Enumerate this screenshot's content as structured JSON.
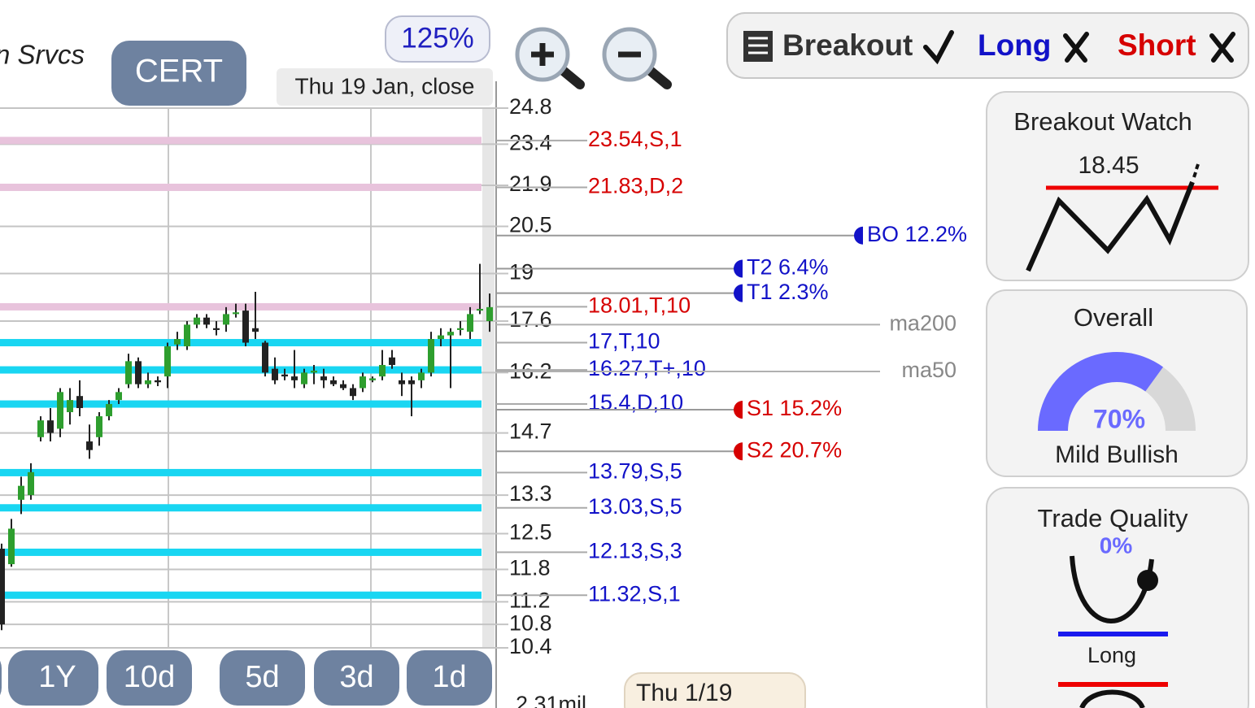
{
  "header": {
    "name": "n Srvcs",
    "ticker": "CERT",
    "zoom": "125%",
    "date": "Thu 19 Jan, close"
  },
  "toolbar": {
    "breakout": "Breakout",
    "long": "Long",
    "short": "Short"
  },
  "chart": {
    "scale": "log",
    "ylim": [
      10.4,
      24.8
    ],
    "yticks": [
      24.8,
      23.4,
      21.9,
      20.5,
      19,
      17.6,
      16.2,
      14.7,
      13.3,
      12.5,
      11.8,
      11.2,
      10.8,
      10.4
    ],
    "grid": true,
    "levels": [
      {
        "value": 23.54,
        "label": "23.54,S,1",
        "text_color": "#d60000",
        "band_color": "#e8c3dc"
      },
      {
        "value": 21.83,
        "label": "21.83,D,2",
        "text_color": "#d60000",
        "band_color": "#e8c3dc"
      },
      {
        "value": 18.01,
        "label": "18.01,T,10",
        "text_color": "#d60000",
        "band_color": "#e8c3dc"
      },
      {
        "value": 17,
        "label": "17,T,10",
        "text_color": "#1212c8",
        "band_color": "#19d6f2"
      },
      {
        "value": 16.27,
        "label": "16.27,T+,10",
        "text_color": "#1212c8",
        "band_color": "#19d6f2"
      },
      {
        "value": 15.4,
        "label": "15.4,D,10",
        "text_color": "#1212c8",
        "band_color": "#19d6f2"
      },
      {
        "value": 13.79,
        "label": "13.79,S,5",
        "text_color": "#1212c8",
        "band_color": "#19d6f2"
      },
      {
        "value": 13.03,
        "label": "13.03,S,5",
        "text_color": "#1212c8",
        "band_color": "#19d6f2"
      },
      {
        "value": 12.13,
        "label": "12.13,S,3",
        "text_color": "#1212c8",
        "band_color": "#19d6f2"
      },
      {
        "value": 11.32,
        "label": "11.32,S,1",
        "text_color": "#1212c8",
        "band_color": "#19d6f2"
      }
    ],
    "targets": [
      {
        "value": 20.2,
        "label": "BO 12.2%",
        "color": "#1212c8"
      },
      {
        "value": 19.15,
        "label": "T2 6.4%",
        "color": "#1212c8"
      },
      {
        "value": 18.41,
        "label": "T1 2.3%",
        "color": "#1212c8"
      },
      {
        "value": 15.26,
        "label": "S1 15.2%",
        "color": "#d60000"
      },
      {
        "value": 14.27,
        "label": "S2 20.7%",
        "color": "#d60000"
      }
    ],
    "moving_averages": [
      {
        "value": 17.5,
        "label": "ma200"
      },
      {
        "value": 16.23,
        "label": "ma50"
      }
    ],
    "up_color": "#2e9e2e",
    "down_color": "#222222",
    "candles": [
      {
        "open": 12.2,
        "high": 12.3,
        "low": 10.7,
        "close": 10.8
      },
      {
        "open": 11.9,
        "high": 12.8,
        "low": 11.85,
        "close": 12.6
      },
      {
        "open": 13.2,
        "high": 13.7,
        "low": 12.9,
        "close": 13.5
      },
      {
        "open": 13.3,
        "high": 14.0,
        "low": 13.2,
        "close": 13.8
      },
      {
        "open": 14.6,
        "high": 15.1,
        "low": 14.5,
        "close": 15.0
      },
      {
        "open": 15.0,
        "high": 15.3,
        "low": 14.5,
        "close": 14.7
      },
      {
        "open": 14.8,
        "high": 15.8,
        "low": 14.6,
        "close": 15.7
      },
      {
        "open": 15.2,
        "high": 15.8,
        "low": 14.9,
        "close": 15.5
      },
      {
        "open": 15.6,
        "high": 16.0,
        "low": 15.1,
        "close": 15.3
      },
      {
        "open": 14.5,
        "high": 14.9,
        "low": 14.1,
        "close": 14.3
      },
      {
        "open": 14.6,
        "high": 15.2,
        "low": 14.4,
        "close": 15.1
      },
      {
        "open": 15.1,
        "high": 15.5,
        "low": 15.0,
        "close": 15.4
      },
      {
        "open": 15.5,
        "high": 15.8,
        "low": 15.4,
        "close": 15.7
      },
      {
        "open": 15.9,
        "high": 16.7,
        "low": 15.8,
        "close": 16.5
      },
      {
        "open": 16.5,
        "high": 16.6,
        "low": 15.8,
        "close": 15.9
      },
      {
        "open": 15.9,
        "high": 16.2,
        "low": 15.8,
        "close": 16.0
      },
      {
        "open": 16.0,
        "high": 16.1,
        "low": 15.85,
        "close": 15.95
      },
      {
        "open": 16.1,
        "high": 17.0,
        "low": 15.8,
        "close": 16.9
      },
      {
        "open": 16.95,
        "high": 17.3,
        "low": 16.8,
        "close": 17.1
      },
      {
        "open": 16.9,
        "high": 17.6,
        "low": 16.8,
        "close": 17.5
      },
      {
        "open": 17.5,
        "high": 17.8,
        "low": 17.4,
        "close": 17.7
      },
      {
        "open": 17.7,
        "high": 17.8,
        "low": 17.4,
        "close": 17.5
      },
      {
        "open": 17.4,
        "high": 17.6,
        "low": 17.2,
        "close": 17.35
      },
      {
        "open": 17.5,
        "high": 18.0,
        "low": 17.3,
        "close": 17.8
      },
      {
        "open": 17.8,
        "high": 18.1,
        "low": 17.7,
        "close": 17.85
      },
      {
        "open": 17.9,
        "high": 18.1,
        "low": 16.9,
        "close": 17.0
      },
      {
        "open": 17.4,
        "high": 18.45,
        "low": 17.1,
        "close": 17.3
      },
      {
        "open": 17.0,
        "high": 17.05,
        "low": 16.1,
        "close": 16.2
      },
      {
        "open": 16.3,
        "high": 16.6,
        "low": 15.9,
        "close": 16.0
      },
      {
        "open": 16.15,
        "high": 16.3,
        "low": 16.0,
        "close": 16.1
      },
      {
        "open": 16.1,
        "high": 16.8,
        "low": 15.8,
        "close": 16.0
      },
      {
        "open": 15.9,
        "high": 16.3,
        "low": 15.8,
        "close": 16.2
      },
      {
        "open": 16.2,
        "high": 16.4,
        "low": 15.9,
        "close": 16.25
      },
      {
        "open": 16.1,
        "high": 16.3,
        "low": 15.8,
        "close": 16.0
      },
      {
        "open": 16.0,
        "high": 16.1,
        "low": 15.85,
        "close": 15.9
      },
      {
        "open": 15.9,
        "high": 16.0,
        "low": 15.75,
        "close": 15.8
      },
      {
        "open": 15.8,
        "high": 15.9,
        "low": 15.5,
        "close": 15.6
      },
      {
        "open": 15.8,
        "high": 16.2,
        "low": 15.7,
        "close": 16.1
      },
      {
        "open": 16.0,
        "high": 16.1,
        "low": 15.95,
        "close": 16.05
      },
      {
        "open": 16.1,
        "high": 16.8,
        "low": 16.0,
        "close": 16.4
      },
      {
        "open": 16.6,
        "high": 16.8,
        "low": 16.3,
        "close": 16.4
      },
      {
        "open": 16.0,
        "high": 16.2,
        "low": 15.6,
        "close": 15.9
      },
      {
        "open": 16.0,
        "high": 16.1,
        "low": 15.1,
        "close": 15.9
      },
      {
        "open": 16.0,
        "high": 16.3,
        "low": 15.8,
        "close": 16.2
      },
      {
        "open": 16.2,
        "high": 17.3,
        "low": 16.1,
        "close": 17.1
      },
      {
        "open": 17.1,
        "high": 17.4,
        "low": 16.9,
        "close": 17.2
      },
      {
        "open": 17.2,
        "high": 17.4,
        "low": 15.8,
        "close": 17.3
      },
      {
        "open": 17.35,
        "high": 17.6,
        "low": 17.2,
        "close": 17.4
      },
      {
        "open": 17.3,
        "high": 18.0,
        "low": 17.1,
        "close": 17.8
      },
      {
        "open": 17.9,
        "high": 19.3,
        "low": 17.8,
        "close": 17.95
      },
      {
        "open": 17.6,
        "high": 18.4,
        "low": 17.3,
        "close": 18.0
      }
    ],
    "volume": "2.31mil",
    "date_label": "Thu 1/19"
  },
  "ranges": [
    "1Y",
    "10d",
    "5d",
    "3d",
    "1d"
  ],
  "panels": {
    "breakout_watch": {
      "title": "Breakout Watch",
      "level": "18.45"
    },
    "overall": {
      "title": "Overall",
      "score": 70,
      "score_label": "70%",
      "verdict": "Mild Bullish"
    },
    "trade_quality": {
      "title": "Trade Quality",
      "score_label": "0%",
      "side": "Long"
    }
  }
}
